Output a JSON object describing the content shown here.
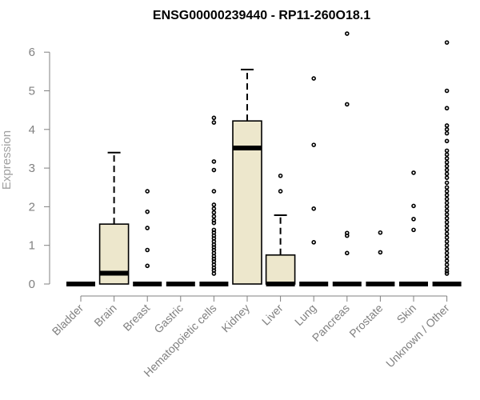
{
  "chart_data": {
    "type": "box",
    "title": "ENSG00000239440 - RP11-260O18.1",
    "xlabel": "",
    "ylabel": "Expression",
    "ylim": [
      0,
      6.5
    ],
    "yticks": [
      0,
      1,
      2,
      3,
      4,
      5,
      6
    ],
    "grid": false,
    "box_fill": "#ede7cc",
    "categories": [
      "Bladder",
      "Brain",
      "Breast",
      "Gastric",
      "Hematopoietic cells",
      "Kidney",
      "Liver",
      "Lung",
      "Pancreas",
      "Prostate",
      "Skin",
      "Unknown / Other"
    ],
    "boxes": [
      {
        "category": "Bladder",
        "min": 0,
        "q1": 0,
        "median": 0,
        "q3": 0,
        "max": 0,
        "outliers": []
      },
      {
        "category": "Brain",
        "min": 0,
        "q1": 0,
        "median": 0.28,
        "q3": 1.55,
        "max": 3.4,
        "outliers": []
      },
      {
        "category": "Breast",
        "min": 0,
        "q1": 0,
        "median": 0,
        "q3": 0,
        "max": 0,
        "outliers": [
          2.4,
          1.87,
          1.45,
          0.88,
          0.47
        ]
      },
      {
        "category": "Gastric",
        "min": 0,
        "q1": 0,
        "median": 0,
        "q3": 0,
        "max": 0,
        "outliers": []
      },
      {
        "category": "Hematopoietic cells",
        "min": 0,
        "q1": 0,
        "median": 0,
        "q3": 0,
        "max": 0,
        "outliers": [
          4.3,
          4.18,
          3.17,
          2.95,
          2.4,
          2.05,
          1.95,
          1.85,
          1.75,
          1.65,
          1.58,
          1.4,
          1.33,
          1.25,
          1.18,
          1.1,
          1.02,
          0.95,
          0.88,
          0.8,
          0.72,
          0.65,
          0.58,
          0.5,
          0.42,
          0.35,
          0.27
        ]
      },
      {
        "category": "Kidney",
        "min": 0,
        "q1": 0,
        "median": 3.52,
        "q3": 4.22,
        "max": 5.55,
        "outliers": []
      },
      {
        "category": "Liver",
        "min": 0,
        "q1": 0,
        "median": 0,
        "q3": 0.75,
        "max": 1.78,
        "outliers": [
          2.8,
          2.4
        ]
      },
      {
        "category": "Lung",
        "min": 0,
        "q1": 0,
        "median": 0,
        "q3": 0,
        "max": 0,
        "outliers": [
          5.32,
          3.6,
          1.95,
          1.08
        ]
      },
      {
        "category": "Pancreas",
        "min": 0,
        "q1": 0,
        "median": 0,
        "q3": 0,
        "max": 0,
        "outliers": [
          6.48,
          4.65,
          1.32,
          1.25,
          0.8
        ]
      },
      {
        "category": "Prostate",
        "min": 0,
        "q1": 0,
        "median": 0,
        "q3": 0,
        "max": 0,
        "outliers": [
          1.33,
          0.82
        ]
      },
      {
        "category": "Skin",
        "min": 0,
        "q1": 0,
        "median": 0,
        "q3": 0,
        "max": 0,
        "outliers": [
          2.88,
          2.02,
          1.68,
          1.4
        ]
      },
      {
        "category": "Unknown / Other",
        "min": 0,
        "q1": 0,
        "median": 0,
        "q3": 0,
        "max": 0,
        "outliers": [
          6.25,
          5.0,
          4.55,
          4.1,
          4.0,
          3.9,
          3.7,
          3.45,
          3.35,
          3.25,
          3.15,
          3.05,
          2.95,
          2.85,
          2.75,
          2.62,
          2.5,
          2.4,
          2.3,
          2.2,
          2.1,
          2.0,
          1.9,
          1.8,
          1.7,
          1.6,
          1.5,
          1.4,
          1.3,
          1.2,
          1.1,
          1.0,
          0.9,
          0.8,
          0.7,
          0.6,
          0.5,
          0.4,
          0.33,
          0.27
        ]
      }
    ]
  }
}
